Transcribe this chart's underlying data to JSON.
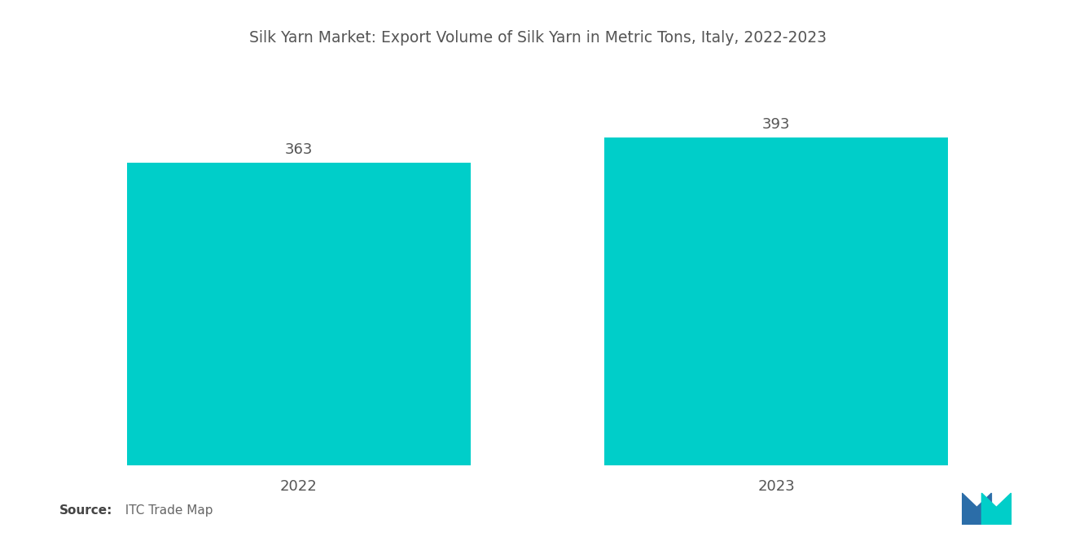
{
  "title": "Silk Yarn Market: Export Volume of Silk Yarn in Metric Tons, Italy, 2022-2023",
  "categories": [
    "2022",
    "2023"
  ],
  "values": [
    363,
    393
  ],
  "bar_color": "#00CEC9",
  "background_color": "#ffffff",
  "title_fontsize": 13.5,
  "tick_fontsize": 13,
  "value_fontsize": 13,
  "source_bold": "Source:",
  "source_normal": "  ITC Trade Map",
  "ylim": [
    0,
    480
  ],
  "bar_width": 0.72,
  "logo_blue": "#2B6DA8",
  "logo_teal": "#00CEC9",
  "text_color": "#555555"
}
